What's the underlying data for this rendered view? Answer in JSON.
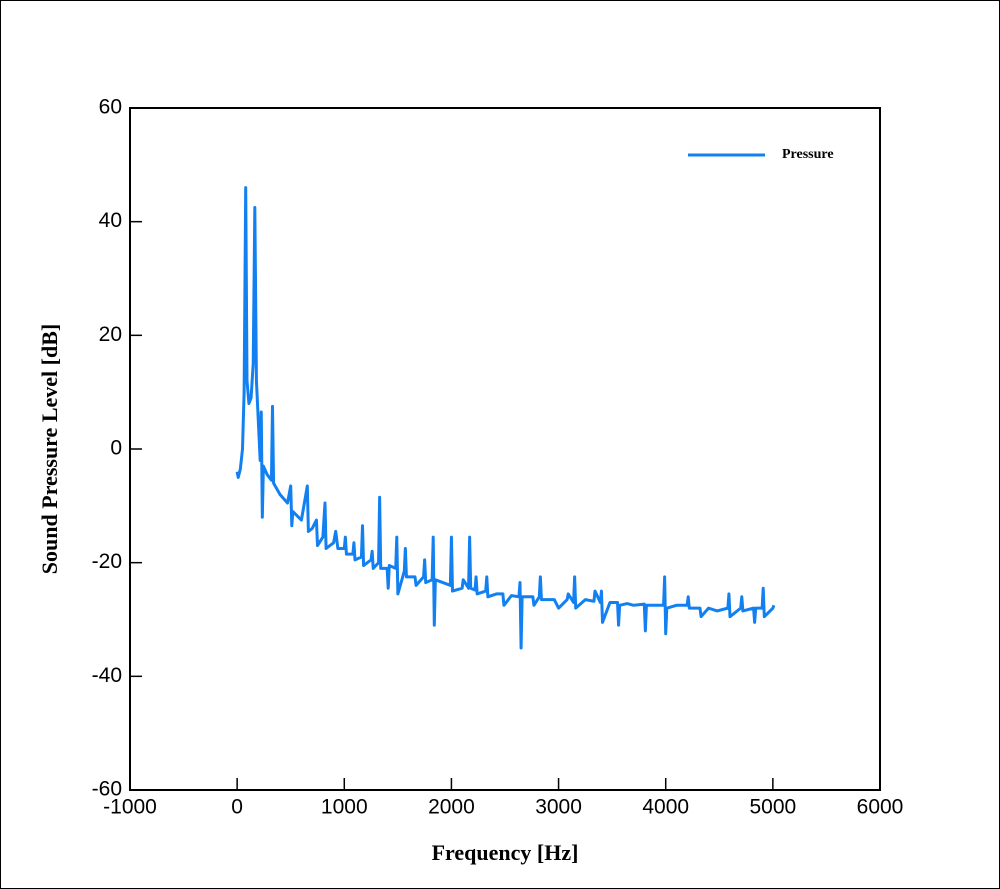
{
  "chart_data": {
    "type": "line",
    "xlabel": "Frequency [Hz]",
    "ylabel": "Sound Pressure Level [dB]",
    "xlim": [
      -1000,
      6000
    ],
    "xticks": [
      -1000,
      0,
      1000,
      2000,
      3000,
      4000,
      5000,
      6000
    ],
    "ylim": [
      -60,
      60
    ],
    "yticks": [
      -60,
      -40,
      -20,
      0,
      20,
      40,
      60
    ],
    "legend": "upper right",
    "x": [
      0,
      10,
      30,
      50,
      65,
      80,
      92,
      110,
      130,
      150,
      165,
      180,
      200,
      215,
      225,
      235,
      245,
      280,
      320,
      330,
      340,
      400,
      470,
      500,
      510,
      520,
      600,
      655,
      665,
      700,
      740,
      750,
      800,
      820,
      830,
      900,
      920,
      940,
      1000,
      1010,
      1020,
      1080,
      1090,
      1100,
      1160,
      1170,
      1180,
      1250,
      1260,
      1270,
      1320,
      1330,
      1340,
      1400,
      1410,
      1420,
      1480,
      1490,
      1500,
      1560,
      1570,
      1580,
      1660,
      1670,
      1740,
      1750,
      1760,
      1820,
      1830,
      1840,
      1850,
      1920,
      1990,
      2000,
      2010,
      2100,
      2110,
      2160,
      2170,
      2180,
      2220,
      2230,
      2240,
      2320,
      2330,
      2340,
      2420,
      2480,
      2490,
      2560,
      2630,
      2640,
      2650,
      2660,
      2760,
      2770,
      2820,
      2830,
      2840,
      2960,
      3000,
      3080,
      3090,
      3140,
      3150,
      3160,
      3250,
      3330,
      3340,
      3390,
      3400,
      3410,
      3480,
      3550,
      3560,
      3570,
      3640,
      3700,
      3800,
      3810,
      3820,
      3900,
      3980,
      3990,
      4000,
      4010,
      4100,
      4200,
      4210,
      4220,
      4320,
      4330,
      4400,
      4480,
      4580,
      4590,
      4600,
      4700,
      4710,
      4720,
      4820,
      4830,
      4840,
      4900,
      4910,
      4920,
      5000,
      5010
    ],
    "series": [
      {
        "name": "Pressure",
        "color": "#1280f0",
        "values": [
          -4,
          -5,
          -3.5,
          0,
          10,
          46,
          12,
          8,
          9,
          15,
          42.5,
          12,
          4,
          -2,
          6.5,
          -12,
          -3,
          -4.5,
          -5.5,
          7.5,
          -6,
          -8,
          -9.5,
          -6.5,
          -13.5,
          -11,
          -12.5,
          -6.5,
          -14.5,
          -14,
          -12.5,
          -17,
          -15.5,
          -9.5,
          -17.5,
          -16.5,
          -14.5,
          -17.5,
          -17.5,
          -15.5,
          -18.5,
          -18.5,
          -16.5,
          -19.5,
          -19,
          -13.5,
          -20.5,
          -19.5,
          -18,
          -21,
          -20,
          -8.5,
          -21,
          -21,
          -24.5,
          -20.5,
          -21,
          -15.5,
          -25.5,
          -21.5,
          -17.5,
          -22.5,
          -22.5,
          -24,
          -22.5,
          -19.5,
          -23.5,
          -23,
          -15.5,
          -31,
          -23,
          -23.5,
          -24,
          -15.5,
          -25,
          -24.5,
          -23,
          -24.5,
          -15.5,
          -24.5,
          -24.8,
          -22.5,
          -25.5,
          -25,
          -22.5,
          -26,
          -25.5,
          -25.5,
          -27.5,
          -25.8,
          -26,
          -23.5,
          -35,
          -26,
          -26,
          -27.5,
          -26,
          -22.5,
          -26.5,
          -26.5,
          -28,
          -26.5,
          -25.5,
          -27,
          -22.5,
          -28,
          -26.5,
          -26.8,
          -25,
          -27,
          -25,
          -30.5,
          -27,
          -27,
          -31,
          -27.5,
          -27.2,
          -27.5,
          -27.3,
          -32,
          -27.5,
          -27.5,
          -27.5,
          -22.5,
          -32.5,
          -28,
          -27.5,
          -27.5,
          -26,
          -28,
          -28,
          -29.5,
          -28,
          -28.5,
          -28,
          -25.5,
          -29.5,
          -28,
          -26,
          -28.5,
          -28,
          -30.5,
          -28,
          -28,
          -24.5,
          -29.5,
          -28,
          -27.5
        ]
      }
    ]
  }
}
